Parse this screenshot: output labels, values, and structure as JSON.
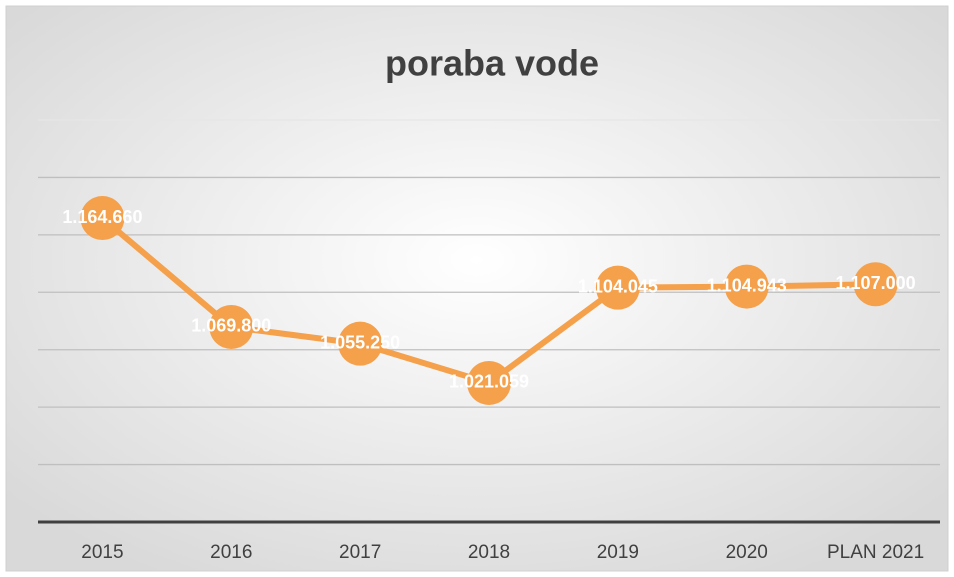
{
  "chart_data": {
    "type": "line",
    "title": "poraba vode",
    "categories": [
      "2015",
      "2016",
      "2017",
      "2018",
      "2019",
      "2020",
      "PLAN 2021"
    ],
    "series": [
      {
        "name": "poraba vode",
        "color": "#f5a04b",
        "values": [
          1164660,
          1069800,
          1055250,
          1021059,
          1104045,
          1104943,
          1107000
        ],
        "value_labels": [
          "1.164.660",
          "1.069.800",
          "1.055.250",
          "1.021.059",
          "1.104.045",
          "1.104.943",
          "1.107.000"
        ]
      }
    ],
    "ylim": [
      900000,
      1250000
    ],
    "yticks": [
      900000,
      950000,
      1000000,
      1050000,
      1100000,
      1150000,
      1200000,
      1250000
    ],
    "grid": true
  }
}
